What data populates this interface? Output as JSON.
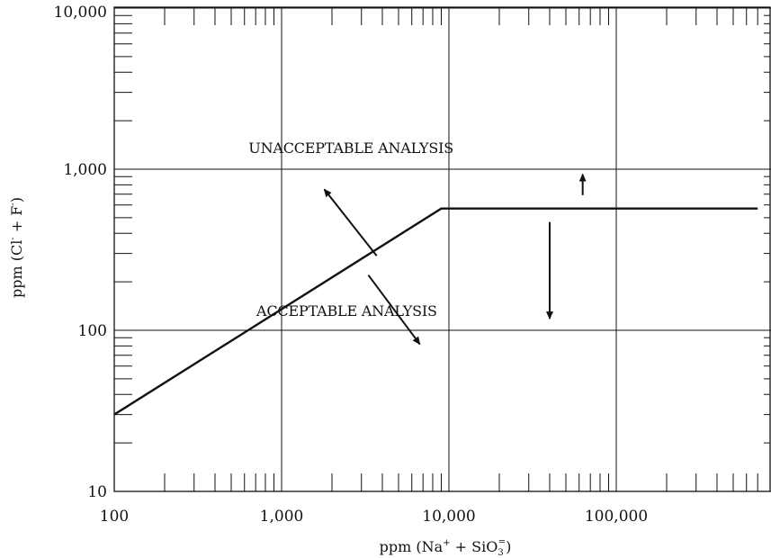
{
  "chart_data": {
    "type": "line",
    "x_scale": "log",
    "y_scale": "log",
    "xlim": [
      100,
      700000
    ],
    "ylim": [
      10,
      10000
    ],
    "x_ticks": [
      {
        "value": 100,
        "label": "100"
      },
      {
        "value": 1000,
        "label": "1,000"
      },
      {
        "value": 10000,
        "label": "10,000"
      },
      {
        "value": 100000,
        "label": "100,000"
      }
    ],
    "y_ticks": [
      {
        "value": 10,
        "label": "10"
      },
      {
        "value": 100,
        "label": "100"
      },
      {
        "value": 1000,
        "label": "1,000"
      },
      {
        "value": 10000,
        "label": "10,000"
      }
    ],
    "xlabel": {
      "main": "ppm (Na",
      "sup1": "+",
      "mid": " + SiO",
      "sub": "3",
      "sup2": "=",
      "end": ")"
    },
    "ylabel": {
      "main": "ppm (Cl",
      "sup1": "-",
      "mid": " + F",
      "sup2": "-",
      "end": ")"
    },
    "grid": true,
    "series": [
      {
        "x": [
          100,
          9000,
          700000
        ],
        "y": [
          30,
          570,
          570
        ]
      }
    ],
    "annotations": [
      {
        "text": "UNACCEPTABLE ANALYSIS",
        "x": 2600,
        "y": 1260
      },
      {
        "text": "ACCEPTABLE ANALYSIS",
        "x": 2450,
        "y": 123
      }
    ],
    "arrows": [
      {
        "from": [
          3700,
          290
        ],
        "to": [
          1800,
          750
        ]
      },
      {
        "from": [
          3300,
          220
        ],
        "to": [
          6700,
          82
        ]
      },
      {
        "from": [
          63000,
          690
        ],
        "to": [
          63000,
          930
        ]
      },
      {
        "from": [
          40000,
          470
        ],
        "to": [
          40000,
          118
        ]
      }
    ]
  }
}
